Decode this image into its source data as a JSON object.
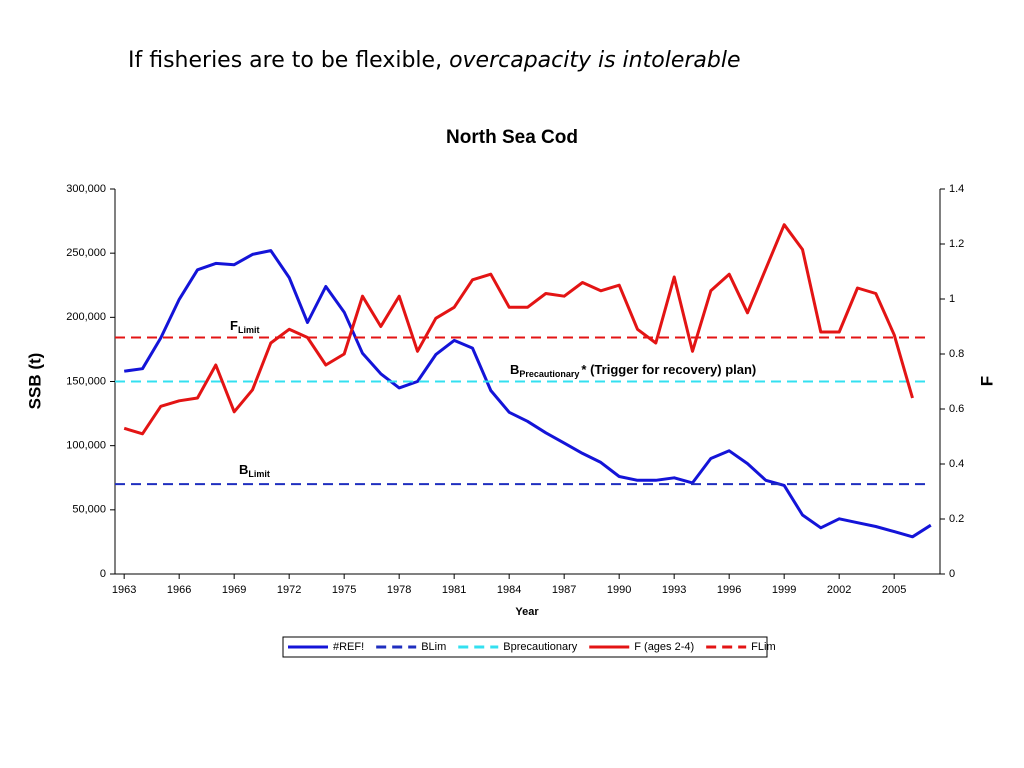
{
  "slide_title": {
    "text": "If fisheries are to be flexible, ",
    "emphasis": "overcapacity is intolerable"
  },
  "chart_data": {
    "type": "line",
    "title": "North Sea Cod",
    "x_label": "Year",
    "y_label": "SSB (t)",
    "y2_label": "F",
    "x": [
      1963,
      1964,
      1965,
      1966,
      1967,
      1968,
      1969,
      1970,
      1971,
      1972,
      1973,
      1974,
      1975,
      1976,
      1977,
      1978,
      1979,
      1980,
      1981,
      1982,
      1983,
      1984,
      1985,
      1986,
      1987,
      1988,
      1989,
      1990,
      1991,
      1992,
      1993,
      1994,
      1995,
      1996,
      1997,
      1998,
      1999,
      2000,
      2001,
      2002,
      2003,
      2004,
      2005,
      2006,
      2007
    ],
    "xlim": [
      1962.5,
      2007.5
    ],
    "xticks": [
      1963,
      1966,
      1969,
      1972,
      1975,
      1978,
      1981,
      1984,
      1987,
      1990,
      1993,
      1996,
      1999,
      2002,
      2005
    ],
    "ylim": [
      0,
      300000
    ],
    "yticks": [
      0,
      {
        "value": 50000,
        "label": "50,000"
      },
      {
        "value": 100000,
        "label": "100,000"
      },
      {
        "value": 150000,
        "label": "150,000"
      },
      {
        "value": 200000,
        "label": "200,000"
      },
      {
        "value": 250000,
        "label": "250,000"
      },
      {
        "value": 300000,
        "label": "300,000"
      }
    ],
    "y2lim": [
      0,
      1.4
    ],
    "y2ticks": [
      0,
      0.2,
      0.4,
      0.6,
      0.8,
      1,
      1.2,
      1.4
    ],
    "series": [
      {
        "name": "#REF!",
        "color": "#1414d8",
        "dashed": false,
        "values": [
          158000,
          160000,
          184000,
          214000,
          237000,
          242000,
          241000,
          249000,
          252000,
          231000,
          196000,
          224000,
          204000,
          172000,
          156000,
          145000,
          150000,
          171000,
          182000,
          176000,
          143000,
          126000,
          119000,
          110000,
          102000,
          94000,
          87000,
          76000,
          73000,
          73000,
          75000,
          71000,
          90000,
          96000,
          86000,
          73000,
          69000,
          46000,
          36000,
          43000,
          40000,
          37000,
          33000,
          29000,
          38000
        ]
      },
      {
        "name": "BLim",
        "color": "#1f2ebf",
        "dashed": true,
        "value": 70000
      },
      {
        "name": "Bprecautionary",
        "color": "#33e0f0",
        "dashed": true,
        "value": 150000
      },
      {
        "name": "F (ages 2-4)",
        "color": "#e31414",
        "dashed": false,
        "axis": "y2",
        "values": [
          0.53,
          0.51,
          0.61,
          0.63,
          0.64,
          0.76,
          0.59,
          0.67,
          0.84,
          0.89,
          0.86,
          0.76,
          0.8,
          1.01,
          0.9,
          1.01,
          0.81,
          0.93,
          0.97,
          1.07,
          1.09,
          0.97,
          0.97,
          1.02,
          1.01,
          1.06,
          1.03,
          1.05,
          0.89,
          0.84,
          1.08,
          0.81,
          1.03,
          1.09,
          0.95,
          1.11,
          1.27,
          1.18,
          0.88,
          0.88,
          1.04,
          1.02,
          0.87,
          0.64,
          null
        ]
      },
      {
        "name": "FLim",
        "color": "#e31414",
        "dashed": true,
        "axis": "y2",
        "value": 0.86
      }
    ],
    "annotations": [
      {
        "text": "F",
        "sub": "Limit",
        "color": "#e31414"
      },
      {
        "text": "B",
        "sub": "Precautionary",
        "rest": "*  (Trigger for recovery) plan)",
        "color": "#1a9fe6"
      },
      {
        "text": "B",
        "sub": "Limit",
        "color": "#1f2ebf"
      }
    ]
  }
}
